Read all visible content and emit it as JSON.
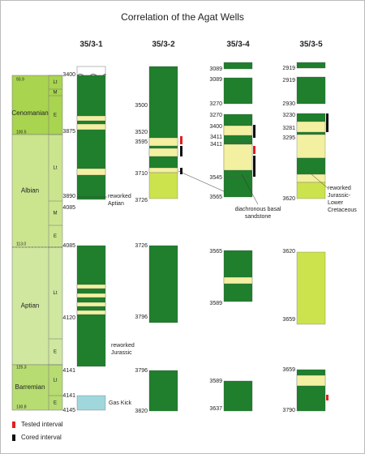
{
  "title": "Correlation of the Agat Wells",
  "stratigraphy": {
    "stages": [
      {
        "name": "Cenomanian",
        "substages": [
          "Lt",
          "M",
          "E"
        ]
      },
      {
        "name": "Albian",
        "substages": [
          "Lt",
          "M",
          "E"
        ]
      },
      {
        "name": "Aptian",
        "substages": [
          "Lt",
          "E"
        ]
      },
      {
        "name": "Barremian",
        "substages": [
          "Lt",
          "E"
        ]
      }
    ],
    "ages": [
      "93.9",
      "100.5",
      "113.0",
      "125.3",
      "130.8"
    ]
  },
  "wells": [
    {
      "name": "35/3-1",
      "depths": [
        3400,
        3875,
        3890,
        4085,
        4085,
        4120,
        4141,
        4141,
        4145
      ],
      "notes": [
        [
          "reworked",
          "Aptian"
        ],
        [
          "reworked",
          "Jurassic"
        ],
        [
          "Gas Kick"
        ]
      ]
    },
    {
      "name": "35/3-2",
      "depths": [
        3500,
        3520,
        3595,
        3710,
        3726,
        3726,
        3796,
        3796,
        3820
      ],
      "notes": []
    },
    {
      "name": "35/3-4",
      "depths": [
        3089,
        3089,
        3270,
        3270,
        3400,
        3411,
        3411,
        3545,
        3565,
        3565,
        3589,
        3589,
        3637
      ],
      "notes": [
        [
          "diachronous basal",
          "sandstone"
        ]
      ]
    },
    {
      "name": "35/3-5",
      "depths": [
        2919,
        2919,
        2930,
        3230,
        3281,
        3295,
        3620,
        3620,
        3659,
        3659,
        3790
      ],
      "notes": [
        [
          "reworked",
          "Jurassic-",
          "Lower",
          "Cretaceous"
        ]
      ]
    }
  ],
  "legend": [
    "Tested interval",
    "Cored interval"
  ]
}
